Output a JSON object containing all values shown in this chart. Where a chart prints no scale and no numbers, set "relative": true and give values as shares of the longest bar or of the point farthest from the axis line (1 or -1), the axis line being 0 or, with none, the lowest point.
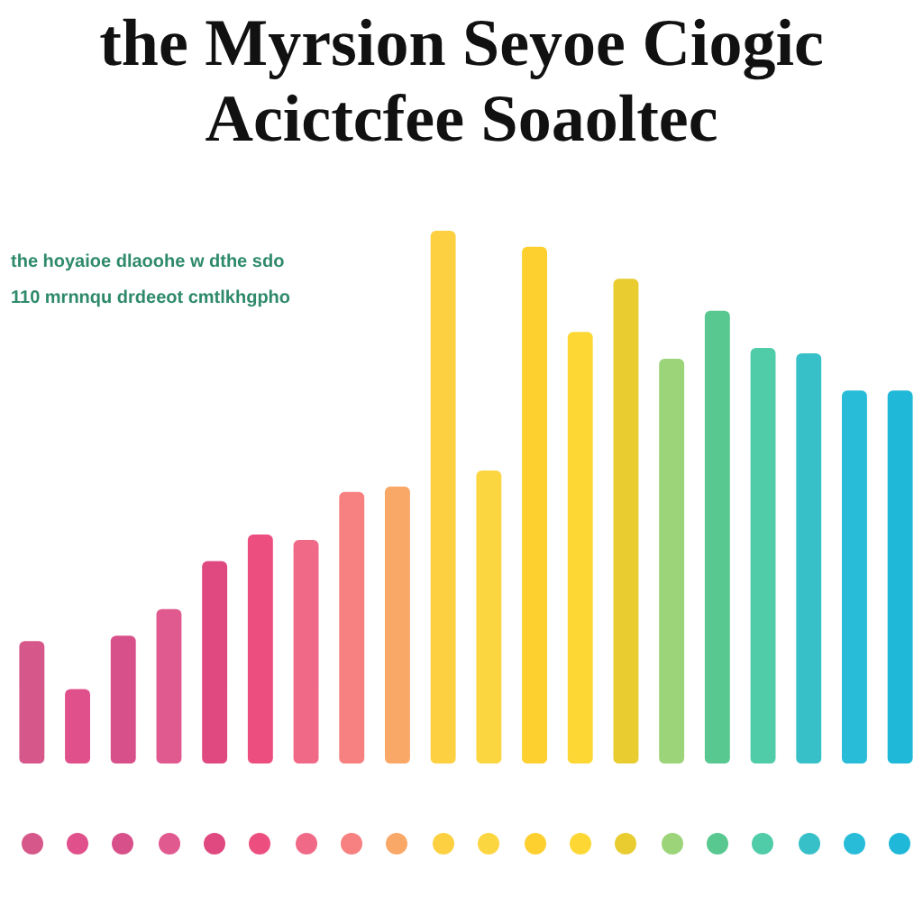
{
  "chart_data": {
    "type": "bar",
    "title": "the Myrsion Seyoe Ciogic\nAcictcfee Soaoltec",
    "subtitle": "the hoyaioe dlaoohe w dthe sdo\n110 mrnnqu drdeeot cmtlkhgpho",
    "relative": true,
    "legend": false,
    "categories": [
      null,
      null,
      null,
      null,
      null,
      null,
      null,
      null,
      null,
      null,
      null,
      null,
      null,
      null,
      null,
      null,
      null,
      null,
      null,
      null
    ],
    "values": [
      0.23,
      0.14,
      0.24,
      0.29,
      0.38,
      0.43,
      0.42,
      0.51,
      0.52,
      1,
      0.55,
      0.97,
      0.81,
      0.91,
      0.76,
      0.85,
      0.78,
      0.77,
      0.7,
      0.7
    ],
    "colors": [
      "#d6578a",
      "#e0508a",
      "#d8508a",
      "#e05a90",
      "#e04880",
      "#ec4e80",
      "#f06a88",
      "#f78080",
      "#f9a868",
      "#fcd040",
      "#fcd640",
      "#fdd030",
      "#fdd835",
      "#e8cc30",
      "#9cd47a",
      "#58c890",
      "#50cca8",
      "#38c0c8",
      "#28bcd8",
      "#20b8d8"
    ]
  }
}
